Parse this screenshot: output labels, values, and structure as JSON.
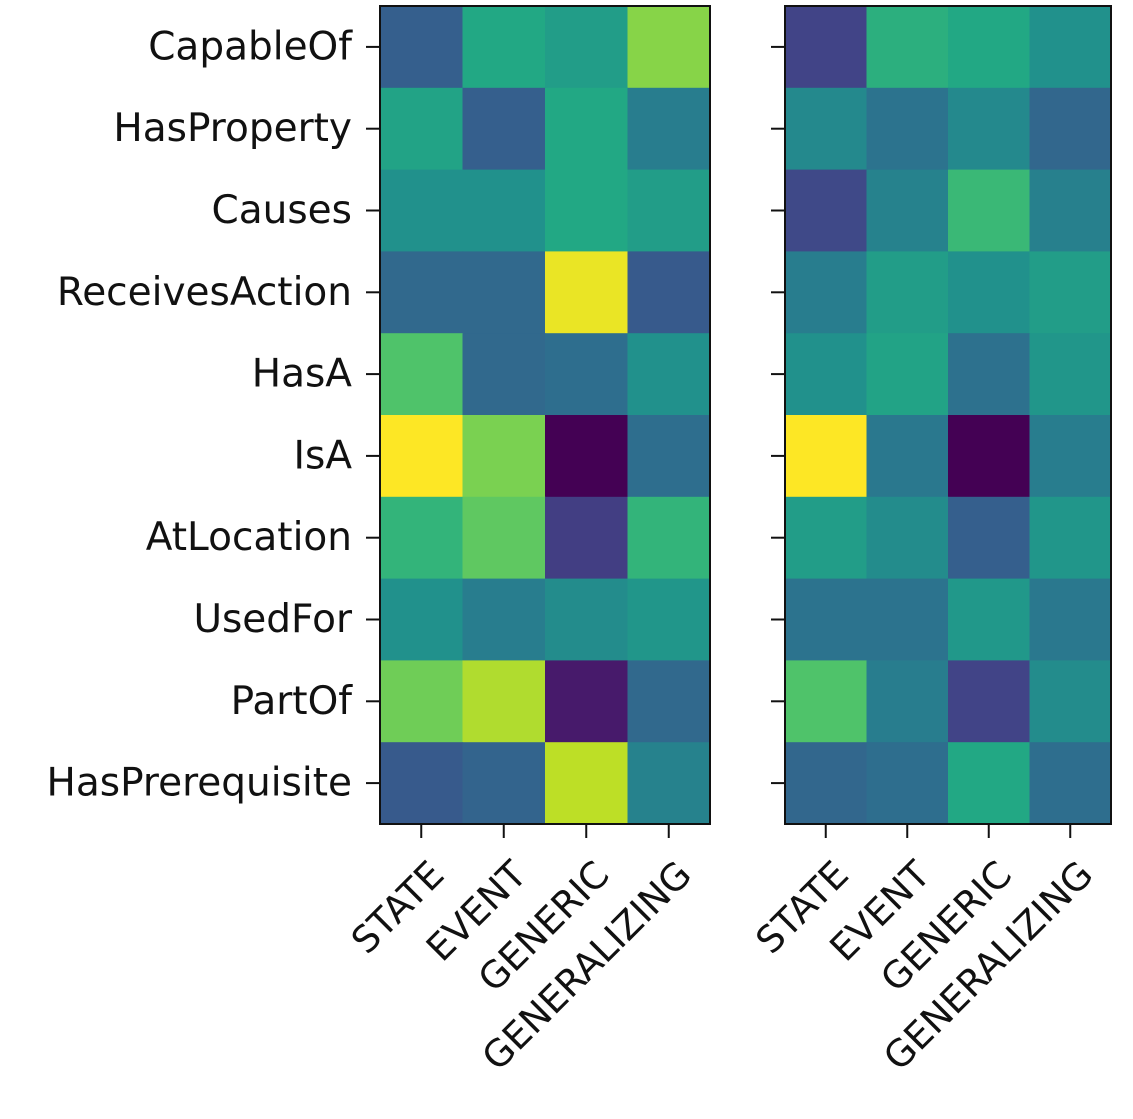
{
  "chart_data": [
    {
      "type": "heatmap",
      "colormap": "viridis",
      "rows": [
        "CapableOf",
        "HasProperty",
        "Causes",
        "ReceivesAction",
        "HasA",
        "IsA",
        "AtLocation",
        "UsedFor",
        "PartOf",
        "HasPrerequisite"
      ],
      "columns": [
        "STATE",
        "EVENT",
        "GENERIC",
        "GENERALIZING"
      ],
      "values": [
        [
          0.3,
          0.6,
          0.55,
          0.82
        ],
        [
          0.58,
          0.3,
          0.6,
          0.42
        ],
        [
          0.5,
          0.5,
          0.6,
          0.55
        ],
        [
          0.34,
          0.34,
          0.97,
          0.28
        ],
        [
          0.72,
          0.34,
          0.36,
          0.5
        ],
        [
          1.0,
          0.8,
          0.0,
          0.36
        ],
        [
          0.65,
          0.75,
          0.18,
          0.65
        ],
        [
          0.5,
          0.42,
          0.48,
          0.52
        ],
        [
          0.78,
          0.88,
          0.07,
          0.34
        ],
        [
          0.28,
          0.32,
          0.9,
          0.44
        ]
      ],
      "show_row_labels": true
    },
    {
      "type": "heatmap",
      "colormap": "viridis",
      "rows": [
        "CapableOf",
        "HasProperty",
        "Causes",
        "ReceivesAction",
        "HasA",
        "IsA",
        "AtLocation",
        "UsedFor",
        "PartOf",
        "HasPrerequisite"
      ],
      "columns": [
        "STATE",
        "EVENT",
        "GENERIC",
        "GENERALIZING"
      ],
      "values": [
        [
          0.2,
          0.63,
          0.6,
          0.5
        ],
        [
          0.47,
          0.38,
          0.47,
          0.33
        ],
        [
          0.22,
          0.44,
          0.67,
          0.43
        ],
        [
          0.42,
          0.55,
          0.5,
          0.55
        ],
        [
          0.5,
          0.58,
          0.37,
          0.52
        ],
        [
          1.0,
          0.4,
          0.0,
          0.42
        ],
        [
          0.55,
          0.48,
          0.3,
          0.52
        ],
        [
          0.38,
          0.38,
          0.53,
          0.4
        ],
        [
          0.72,
          0.42,
          0.2,
          0.48
        ],
        [
          0.33,
          0.36,
          0.6,
          0.36
        ]
      ],
      "show_row_labels": false
    }
  ]
}
